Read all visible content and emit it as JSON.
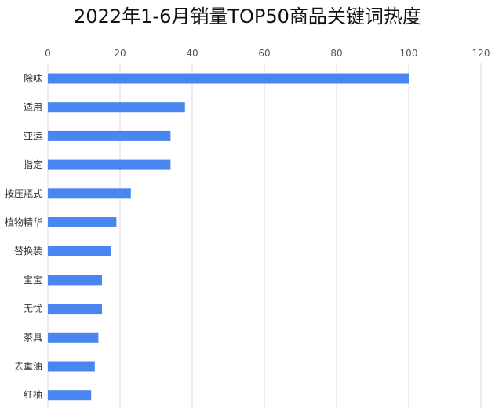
{
  "chart_data": {
    "type": "bar",
    "orientation": "horizontal",
    "title": "2022年1-6月销量TOP50商品关键词热度",
    "categories": [
      "除味",
      "适用",
      "亚运",
      "指定",
      "按压瓶式",
      "植物精华",
      "替换装",
      "宝宝",
      "无忧",
      "茶具",
      "去重油",
      "红柚"
    ],
    "values": [
      100,
      38,
      34,
      34,
      23,
      19,
      17.5,
      15,
      15,
      14,
      13,
      12
    ],
    "xlim": [
      0,
      120
    ],
    "xticks": [
      0,
      20,
      40,
      60,
      80,
      100,
      120
    ],
    "x_axis_position": "top",
    "grid": true,
    "legend": "none",
    "xlabel": "",
    "ylabel": "",
    "bar_color": "#4a86f0",
    "grid_color": "#d9d9d9"
  }
}
